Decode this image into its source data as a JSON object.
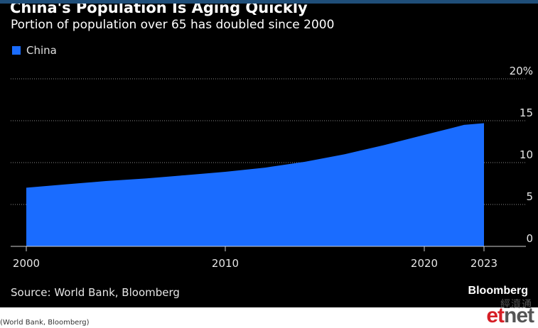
{
  "title": "China's Population Is Aging Quickly",
  "subtitle": "Portion of population over 65 has doubled since 2000",
  "legend": {
    "label": "China",
    "color": "#1a6cff"
  },
  "chart_data": {
    "type": "area",
    "title": "China's Population Is Aging Quickly",
    "subtitle": "Portion of population over 65 has doubled since 2000",
    "x": [
      2000,
      2002,
      2004,
      2006,
      2008,
      2010,
      2012,
      2014,
      2016,
      2018,
      2020,
      2022,
      2023
    ],
    "series": [
      {
        "name": "China",
        "values": [
          7.0,
          7.4,
          7.8,
          8.1,
          8.5,
          8.9,
          9.4,
          10.1,
          11.0,
          12.1,
          13.3,
          14.5,
          14.7
        ]
      }
    ],
    "xticks": [
      2000,
      2010,
      2020,
      2023
    ],
    "yticks": [
      0,
      5,
      10,
      15,
      20
    ],
    "ytick_labels": [
      "0",
      "5",
      "10",
      "15",
      "20%"
    ],
    "ylim": [
      0,
      20
    ],
    "xlim": [
      2000,
      2023
    ],
    "xlabel": "",
    "ylabel": "",
    "grid": true,
    "legend_position": "top-left",
    "color": "#1a6cff"
  },
  "footer": {
    "source": "Source: World Bank, Bloomberg",
    "brand": "Bloomberg"
  },
  "caption": "(World Bank, Bloomberg)",
  "watermark": {
    "chinese": "經濟通",
    "et": "et",
    "net": "net"
  }
}
